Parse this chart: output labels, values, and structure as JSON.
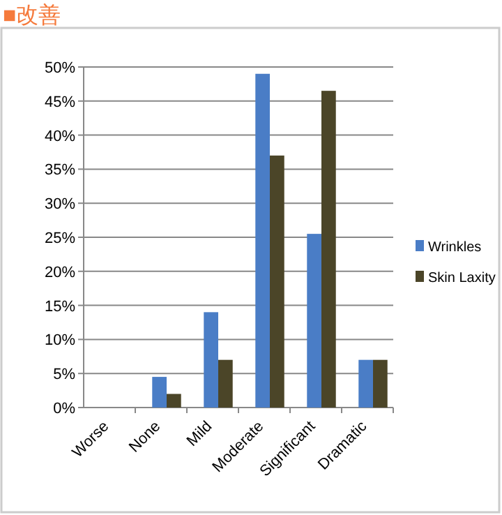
{
  "chart_data": {
    "type": "bar",
    "title": "■改善",
    "categories": [
      "Worse",
      "None",
      "Mild",
      "Moderate",
      "Significant",
      "Dramatic"
    ],
    "series": [
      {
        "name": "Wrinkles",
        "color": "#4a7dc6",
        "values": [
          0,
          4.5,
          14,
          49,
          25.5,
          7
        ]
      },
      {
        "name": "Skin Laxity",
        "color": "#4b4528",
        "values": [
          0,
          2,
          7,
          37,
          46.5,
          7
        ]
      }
    ],
    "ylim": [
      0,
      50
    ],
    "yticks": [
      {
        "value": 0,
        "label": "0%"
      },
      {
        "value": 5,
        "label": "5%"
      },
      {
        "value": 10,
        "label": "10%"
      },
      {
        "value": 15,
        "label": "15%"
      },
      {
        "value": 20,
        "label": "20%"
      },
      {
        "value": 25,
        "label": "25%"
      },
      {
        "value": 30,
        "label": "30%"
      },
      {
        "value": 35,
        "label": "35%"
      },
      {
        "value": 40,
        "label": "40%"
      },
      {
        "value": 45,
        "label": "45%"
      },
      {
        "value": 50,
        "label": "50%"
      }
    ],
    "grid": "y",
    "legend": "right"
  }
}
